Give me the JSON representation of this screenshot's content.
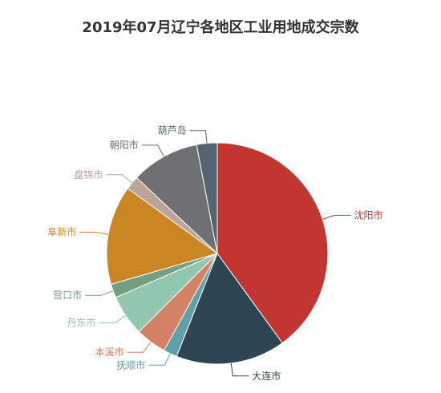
{
  "chart_data": {
    "type": "pie",
    "title": "2019年07月辽宁各地区工业用地成交宗数",
    "slices": [
      {
        "label": "沈阳市",
        "value": 40.0,
        "color": "#c23531"
      },
      {
        "label": "大连市",
        "value": 16.0,
        "color": "#2f4554"
      },
      {
        "label": "抚顺市",
        "value": 2.0,
        "color": "#61a0a8"
      },
      {
        "label": "本溪市",
        "value": 4.5,
        "color": "#d48265"
      },
      {
        "label": "丹东市",
        "value": 6.0,
        "color": "#91c7ae"
      },
      {
        "label": "营口市",
        "value": 2.0,
        "color": "#749f83"
      },
      {
        "label": "阜新市",
        "value": 14.5,
        "color": "#ca8622"
      },
      {
        "label": "盘锦市",
        "value": 2.0,
        "color": "#bda29a"
      },
      {
        "label": "朝阳市",
        "value": 10.0,
        "color": "#6e7074"
      },
      {
        "label": "葫芦岛",
        "value": 3.0,
        "color": "#546570"
      }
    ]
  }
}
